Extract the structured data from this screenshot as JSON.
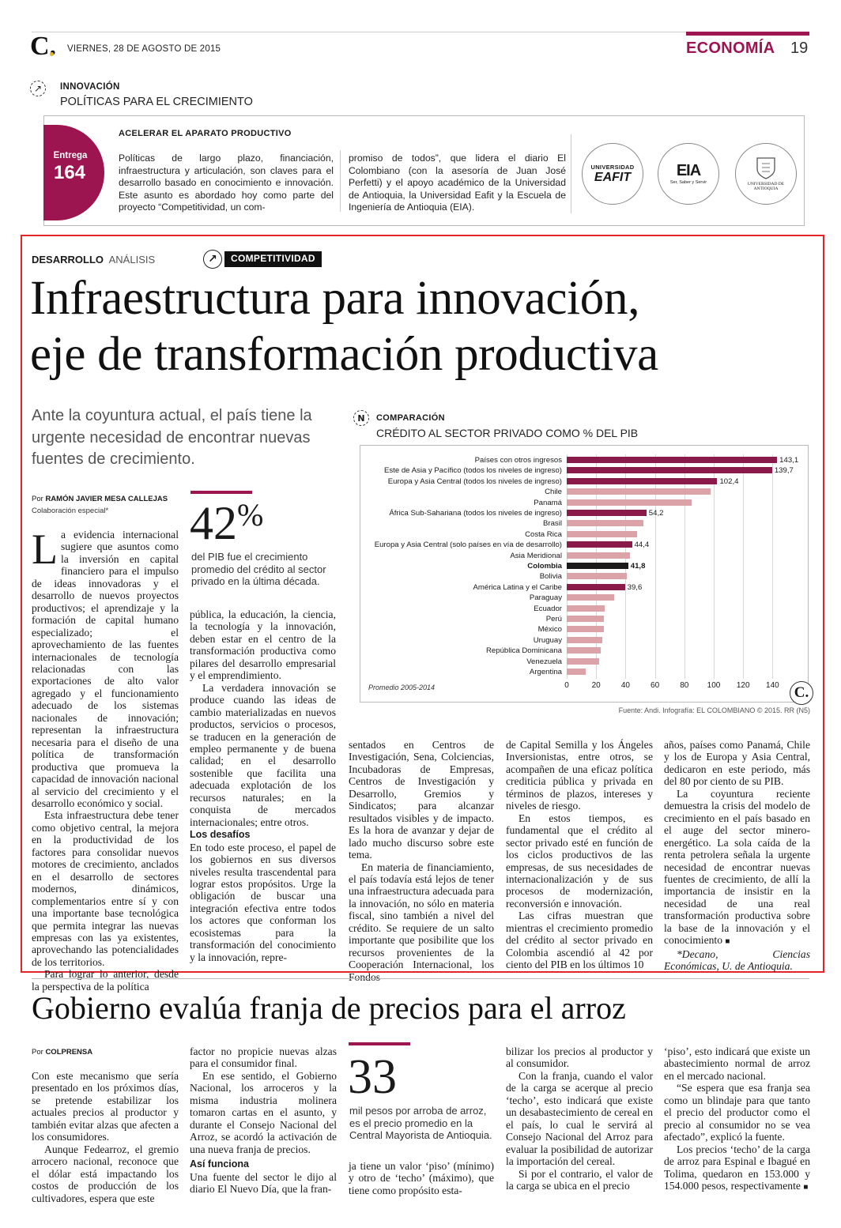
{
  "header": {
    "logo": "C.",
    "date": "VIERNES, 28 DE AGOSTO DE 2015",
    "section": "ECONOMÍA",
    "page": "19"
  },
  "series_box": {
    "kicker": "INNOVACIÓN",
    "title": "POLÍTICAS PARA EL CRECIMIENTO",
    "entrega_label": "Entrega",
    "entrega_number": "164",
    "subhead": "ACELERAR EL APARATO PRODUCTIVO",
    "col1": "Políticas de largo plazo, financiación, infraestructura y articulación, son claves para el desarrollo basado en conocimiento e innovación. Este asunto es abordado hoy como parte del proyecto “Competitividad, un com-",
    "col2": "promiso de todos”, que lidera el diario El Colombiano (con la asesoría de Juan José Perfetti) y el apoyo académico de la Universidad de Antioquia, la Universidad Eafit y la Escuela de Ingeniería de Antioquia (EIA).",
    "logo1_top": "UNIVERSIDAD",
    "logo1_main": "EAFIT",
    "logo2_main": "EIA",
    "logo2_sub": "Ser, Saber y Servir",
    "logo3_text": "UNIVERSIDAD DE ANTIOQUIA"
  },
  "article1": {
    "section": "DESARROLLO",
    "section_type": "ANÁLISIS",
    "tag": "COMPETITIVIDAD",
    "headline_1": "Infraestructura para innovación,",
    "headline_2": "eje de transformación productiva",
    "lead": "Ante la coyuntura actual, el país tiene la urgente necesidad de encontrar nuevas fuentes de crecimiento.",
    "byline_prefix": "Por ",
    "byline_name": "RAMÓN JAVIER MESA CALLEJAS",
    "byline_role": "Colaboración especial*",
    "dropcap": "L",
    "col1_p1": "a evidencia internacional sugiere que asuntos como la inversión en capital financiero para el impulso de ideas innovadoras y el desarrollo de nuevos proyectos productivos; el aprendizaje y la formación de capital humano especializado; el aprovechamiento de las fuentes internacionales de tecnología relacionadas con las exportaciones de alto valor agregado y el funcionamiento adecuado de los sistemas nacionales de innovación; representan la infraestructura necesaria para el diseño de una política de transformación productiva que promueva la capacidad de innovación nacional al servicio del crecimiento y el desarrollo económico y social.",
    "col1_p2": "Esta infraestructura debe tener como objetivo central, la mejora en la productividad de los factores para consolidar nuevos motores de crecimiento, anclados en el desarrollo de sectores modernos, dinámicos, complementarios entre sí y con una importante base tecnológica que permita integrar las nuevas empresas con las ya existentes, aprovechando las potencialidades de los territorios.",
    "col1_p3": "Para lograr lo anterior, desde la perspectiva de la política",
    "stat_value": "42",
    "stat_unit": "%",
    "stat_text": "del PIB fue el crecimiento promedio del crédito al sector privado en la última década.",
    "col2_p1": "pública, la educación, la ciencia, la tecnología y la innovación, deben estar en el centro de la transformación productiva como pilares del desarrollo empresarial y el emprendimiento.",
    "col2_p2": "La verdadera innovación se produce cuando las ideas de cambio materializadas en nuevos productos, servicios o procesos, se traducen en la generación de empleo permanente y de buena calidad; en el desarrollo sostenible que facilita una adecuada explotación de los recursos naturales; en la conquista de mercados internacionales; entre otros.",
    "col2_head": "Los desafíos",
    "col2_p3": "En todo este proceso, el papel de los gobiernos en sus diversos niveles resulta trascendental para lograr estos propósitos. Urge la obligación de buscar una integración efectiva entre todos los actores que conforman los ecosistemas para la transformación del conocimiento y la innovación, repre-",
    "col3_p1": "sentados en Centros de Investigación, Sena, Colciencias, Incubadoras de Empresas, Centros de Investigación y Desarrollo, Gremios y Sindicatos; para alcanzar resultados visibles y de impacto. Es la hora de avanzar y dejar de lado mucho discurso sobre este tema.",
    "col3_p2": "En materia de financiamiento, el país todavía está lejos de tener una infraestructura adecuada para la innovación, no sólo en materia fiscal, sino también a nivel del crédito. Se requiere de un salto importante que posibilite que los recursos provenientes de la Cooperación Internacional, los Fondos",
    "col4_p1": "de Capital Semilla y los Ángeles Inversionistas, entre otros, se acompañen de una eficaz política crediticia pública y privada en términos de plazos, intereses y niveles de riesgo.",
    "col4_p2": "En estos tiempos, es fundamental que el crédito al sector privado esté en función de los ciclos productivos de las empresas, de sus necesidades de internacionalización y de sus procesos de modernización, reconversión e innovación.",
    "col4_p3": "Las cifras muestran que mientras el crecimiento promedio del crédito al sector privado en Colombia ascendió al 42 por ciento del PIB en los últimos 10",
    "col5_p1": "años, países como Panamá, Chile y los de Europa y Asia Central, dedicaron en este periodo, más del 80 por ciento de su PIB.",
    "col5_p2": "La coyuntura reciente demuestra la crisis del modelo de crecimiento en el país basado en el auge del sector minero-energético. La sola caída de la renta petrolera señala la urgente necesidad de encontrar nuevas fuentes de crecimiento, de allí la importancia de insistir en la necesidad de una real transformación productiva sobre la base de la innovación y el conocimiento",
    "col5_end_mark": "■",
    "col5_note": "*Decano, Ciencias Económicas, U. de Antioquia."
  },
  "chart_box": {
    "kicker": "COMPARACIÓN",
    "title": "CRÉDITO AL SECTOR PRIVADO COMO % DEL PIB",
    "note": "Promedio 2005-2014",
    "source": "Fuente: Andi. Infografía: EL COLOMBIANO © 2015. RR (N5)",
    "logo": "C."
  },
  "chart_data": {
    "type": "bar",
    "orientation": "horizontal",
    "title": "CRÉDITO AL SECTOR PRIVADO COMO % DEL PIB",
    "xlim": [
      0,
      150
    ],
    "xticks": [
      "0",
      "20",
      "40",
      "60",
      "80",
      "100",
      "120",
      "140"
    ],
    "categories": [
      "Países con otros ingresos",
      "Este de Asia y Pacífico (todos los niveles de ingreso)",
      "Europa y Asia Central (todos los niveles de ingreso)",
      "Chile",
      "Panamá",
      "África Sub-Sahariana (todos los niveles de ingreso)",
      "Brasil",
      "Costa Rica",
      "Europa y Asia Central (solo países en vía de desarrollo)",
      "Asia Meridional",
      "Colombia",
      "Bolivia",
      "América Latina y el Caribe",
      "Paraguay",
      "Ecuador",
      "Perú",
      "México",
      "Uruguay",
      "República Dominicana",
      "Venezuela",
      "Argentina"
    ],
    "values": [
      143.1,
      139.7,
      102.4,
      98,
      85,
      54.2,
      52,
      48,
      44.4,
      43,
      41.8,
      41,
      39.6,
      32,
      26,
      25,
      25,
      24,
      23,
      22,
      13
    ],
    "value_labels": [
      "143,1",
      "139,7",
      "102,4",
      "",
      "",
      "54,2",
      "",
      "",
      "44,4",
      "",
      "41,8",
      "",
      "39,6",
      "",
      "",
      "",
      "",
      "",
      "",
      "",
      ""
    ],
    "bar_colors": [
      "#8a1a4a",
      "#8a1a4a",
      "#8a1a4a",
      "#dba3a8",
      "#dba3a8",
      "#8a1a4a",
      "#dba3a8",
      "#dba3a8",
      "#8a1a4a",
      "#dba3a8",
      "#1a1a1a",
      "#dba3a8",
      "#8a1a4a",
      "#dba3a8",
      "#dba3a8",
      "#dba3a8",
      "#dba3a8",
      "#dba3a8",
      "#dba3a8",
      "#dba3a8",
      "#dba3a8"
    ],
    "highlight": "Colombia"
  },
  "article2": {
    "headline": "Gobierno evalúa franja de precios para el arroz",
    "byline_prefix": "Por ",
    "byline_name": "COLPRENSA",
    "col1_p1": "Con este mecanismo que sería presentado en los próximos días, se pretende estabilizar los actuales precios al productor y también evitar alzas que afecten a los consumidores.",
    "col1_p2": "Aunque Fedearroz, el gremio arrocero nacional, reconoce que el dólar está impactando los costos de producción de los cultivadores, espera que este",
    "col2_p1": "factor no propicie nuevas alzas para el consumidor final.",
    "col2_p2": "En ese sentido, el Gobierno Nacional, los arroceros y la misma industria molinera tomaron cartas en el asunto, y durante el Consejo Nacional del Arroz, se acordó la activación de una nueva franja de precios.",
    "col2_head": "Así funciona",
    "col2_p3": "Una fuente del sector le dijo al diario El Nuevo Día, que la fran-",
    "stat_value": "33",
    "stat_text": "mil pesos por arroba de arroz, es el precio promedio en la Central Mayorista de Antioquia.",
    "col3_p1": "ja tiene un valor ‘piso’ (mínimo) y otro de ‘techo’ (máximo), que tiene como propósito esta-",
    "col4_p1": "bilizar los precios al productor y al consumidor.",
    "col4_p2": "Con la franja, cuando el valor de la carga se acerque al precio ‘techo’, esto indicará que existe un desabastecimiento de cereal en el país, lo cual le servirá al Consejo Nacional del Arroz para evaluar la posibilidad de autorizar la importación del cereal.",
    "col4_p3": "Si por el contrario, el valor de la carga se ubica en el precio",
    "col5_p1": "‘piso’, esto indicará que existe un abastecimiento normal de arroz en el mercado nacional.",
    "col5_p2": "“Se espera que esa franja sea como un blindaje para que tanto el precio del productor como el precio al consumidor no se vea afectado”, explicó la fuente.",
    "col5_p3": "Los precios ‘techo’ de la carga de arroz para Espinal e Ibagué en Tolima, quedaron en 153.000 y 154.000 pesos, respectivamente",
    "col5_end_mark": "■"
  }
}
